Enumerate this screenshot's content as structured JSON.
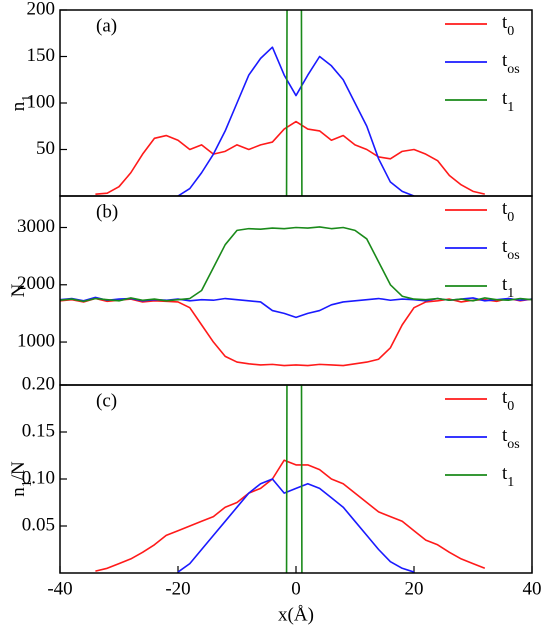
{
  "chart_data": [
    {
      "type": "line",
      "panel_label": "(a)",
      "y_label": [
        "n",
        "1"
      ],
      "x": [
        -40,
        -38,
        -36,
        -34,
        -32,
        -30,
        -28,
        -26,
        -24,
        -22,
        -20,
        -18,
        -16,
        -14,
        -12,
        -10,
        -8,
        -6,
        -4,
        -2,
        0,
        2,
        4,
        6,
        8,
        10,
        12,
        14,
        16,
        18,
        20,
        22,
        24,
        26,
        28,
        30,
        32,
        34,
        36,
        38,
        40
      ],
      "xlim": [
        -40,
        40
      ],
      "ylim": [
        0,
        200
      ],
      "yticks": [
        50,
        100,
        150,
        200
      ],
      "legend": "upper right",
      "series": [
        {
          "name": [
            "t",
            "0"
          ],
          "color": "#ff1a1a",
          "values": [
            null,
            null,
            null,
            2,
            3,
            10,
            25,
            45,
            62,
            65,
            60,
            50,
            55,
            45,
            48,
            55,
            50,
            55,
            58,
            72,
            80,
            72,
            70,
            60,
            65,
            55,
            50,
            42,
            40,
            48,
            50,
            45,
            38,
            22,
            12,
            5,
            2,
            null,
            null,
            null,
            null
          ]
        },
        {
          "name": [
            "t",
            "os"
          ],
          "color": "#1a1aff",
          "values": [
            null,
            null,
            null,
            null,
            null,
            null,
            null,
            null,
            null,
            null,
            0,
            8,
            25,
            45,
            70,
            100,
            130,
            148,
            160,
            130,
            108,
            130,
            150,
            140,
            125,
            100,
            75,
            40,
            15,
            5,
            0,
            null,
            null,
            null,
            null,
            null,
            null,
            null,
            null,
            null,
            null
          ]
        },
        {
          "name": [
            "t",
            "1"
          ],
          "color": "#1a8a1a",
          "x": [
            -1.6,
            -1.5,
            0.9,
            1.0
          ],
          "values": [
            0,
            250,
            250,
            0
          ]
        }
      ]
    },
    {
      "type": "line",
      "panel_label": "(b)",
      "y_label": [
        "N"
      ],
      "x": [
        -40,
        -38,
        -36,
        -34,
        -32,
        -30,
        -28,
        -26,
        -24,
        -22,
        -20,
        -18,
        -16,
        -14,
        -12,
        -10,
        -8,
        -6,
        -4,
        -2,
        0,
        2,
        4,
        6,
        8,
        10,
        12,
        14,
        16,
        18,
        20,
        22,
        24,
        26,
        28,
        30,
        32,
        34,
        36,
        38,
        40
      ],
      "xlim": [
        -40,
        40
      ],
      "ylim": [
        250,
        3550
      ],
      "yticks": [
        1000,
        2000,
        3000
      ],
      "legend": "upper right",
      "series": [
        {
          "name": [
            "t",
            "0"
          ],
          "color": "#ff1a1a",
          "values": [
            1720,
            1740,
            1700,
            1760,
            1710,
            1730,
            1750,
            1700,
            1720,
            1710,
            1700,
            1600,
            1300,
            1000,
            750,
            650,
            620,
            600,
            610,
            590,
            600,
            590,
            610,
            600,
            590,
            620,
            650,
            700,
            900,
            1300,
            1600,
            1700,
            1720,
            1750,
            1700,
            1730,
            1740,
            1710,
            1760,
            1720,
            1750
          ]
        },
        {
          "name": [
            "t",
            "os"
          ],
          "color": "#1a1aff",
          "values": [
            1740,
            1760,
            1720,
            1780,
            1730,
            1750,
            1760,
            1720,
            1740,
            1730,
            1750,
            1720,
            1740,
            1730,
            1760,
            1740,
            1720,
            1700,
            1550,
            1500,
            1430,
            1500,
            1550,
            1650,
            1700,
            1720,
            1740,
            1760,
            1730,
            1750,
            1740,
            1720,
            1760,
            1730,
            1750,
            1770,
            1720,
            1740,
            1760,
            1730,
            1750
          ]
        },
        {
          "name": [
            "t",
            "1"
          ],
          "color": "#1a8a1a",
          "values": [
            1730,
            1750,
            1710,
            1760,
            1740,
            1720,
            1770,
            1730,
            1750,
            1720,
            1740,
            1760,
            1900,
            2300,
            2700,
            2950,
            2980,
            2970,
            2990,
            2980,
            3000,
            2990,
            3010,
            2980,
            3000,
            2950,
            2800,
            2400,
            2000,
            1800,
            1750,
            1740,
            1760,
            1730,
            1750,
            1720,
            1770,
            1740,
            1730,
            1760,
            1740
          ]
        }
      ]
    },
    {
      "type": "line",
      "panel_label": "(c)",
      "y_label": [
        "n",
        "1",
        "/N"
      ],
      "x_label": "x(Å)",
      "x": [
        -40,
        -38,
        -36,
        -34,
        -32,
        -30,
        -28,
        -26,
        -24,
        -22,
        -20,
        -18,
        -16,
        -14,
        -12,
        -10,
        -8,
        -6,
        -4,
        -2,
        0,
        2,
        4,
        6,
        8,
        10,
        12,
        14,
        16,
        18,
        20,
        22,
        24,
        26,
        28,
        30,
        32,
        34,
        36,
        38,
        40
      ],
      "xlim": [
        -40,
        40
      ],
      "xticks": [
        -40,
        -20,
        0,
        20,
        40
      ],
      "ylim": [
        0,
        0.2
      ],
      "yticks": [
        0.05,
        {
          "value": 0.1,
          "label": "0.10"
        },
        0.15,
        {
          "value": 0.2,
          "label": "0.20"
        }
      ],
      "legend": "upper right",
      "series": [
        {
          "name": [
            "t",
            "0"
          ],
          "color": "#ff1a1a",
          "values": [
            null,
            null,
            null,
            0.002,
            0.005,
            0.01,
            0.015,
            0.022,
            0.03,
            0.04,
            0.045,
            0.05,
            0.055,
            0.06,
            0.07,
            0.075,
            0.085,
            0.09,
            0.1,
            0.12,
            0.115,
            0.115,
            0.11,
            0.1,
            0.095,
            0.085,
            0.075,
            0.065,
            0.06,
            0.055,
            0.045,
            0.035,
            0.03,
            0.022,
            0.015,
            0.01,
            0.005,
            null,
            null,
            null,
            null
          ]
        },
        {
          "name": [
            "t",
            "os"
          ],
          "color": "#1a1aff",
          "values": [
            null,
            null,
            null,
            null,
            null,
            null,
            null,
            null,
            null,
            null,
            0.001,
            0.01,
            0.025,
            0.04,
            0.055,
            0.07,
            0.085,
            0.095,
            0.1,
            0.085,
            0.09,
            0.095,
            0.09,
            0.08,
            0.07,
            0.055,
            0.04,
            0.025,
            0.012,
            0.005,
            0.001,
            null,
            null,
            null,
            null,
            null,
            null,
            null,
            null,
            null,
            null
          ]
        },
        {
          "name": [
            "t",
            "1"
          ],
          "color": "#1a8a1a",
          "x": [
            -1.6,
            -1.5,
            0.9,
            1.0
          ],
          "values": [
            0,
            0.3,
            0.3,
            0
          ]
        }
      ]
    }
  ]
}
